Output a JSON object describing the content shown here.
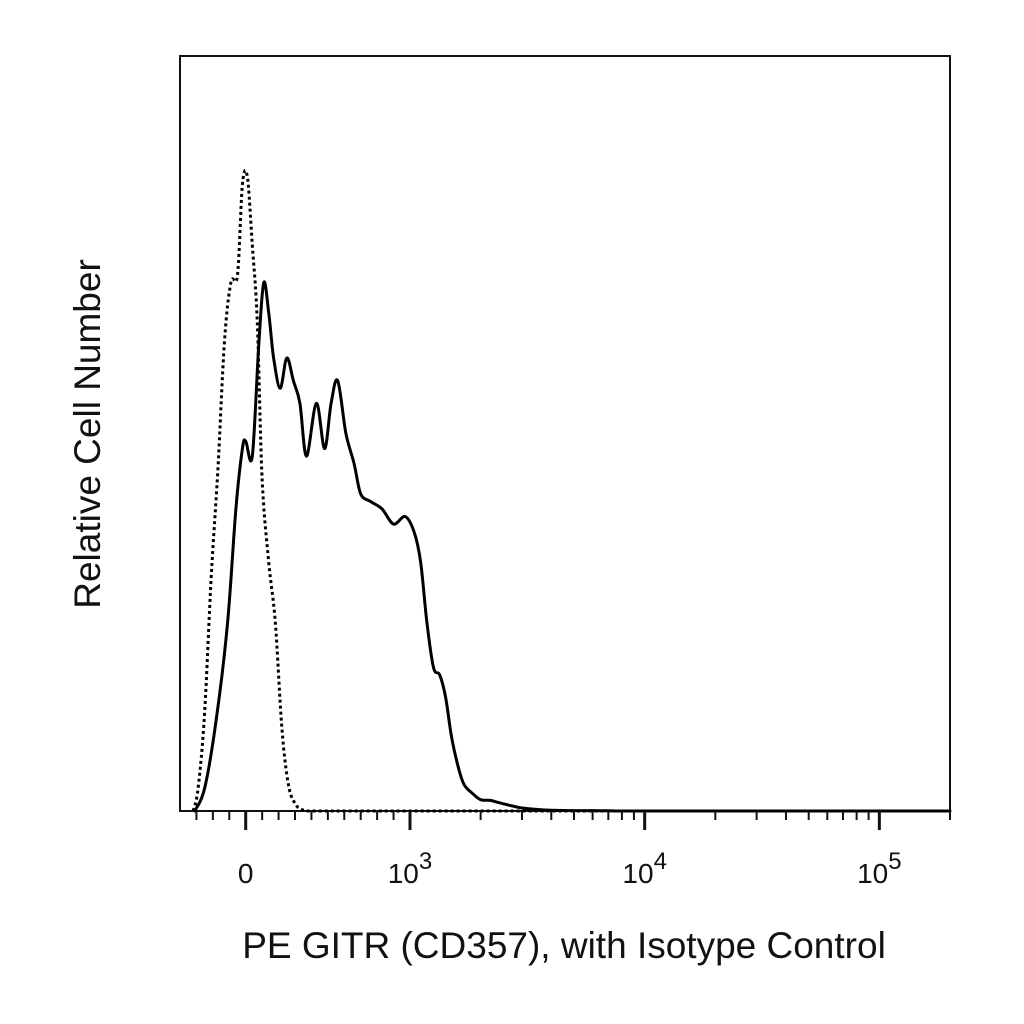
{
  "chart_data": {
    "type": "line",
    "xlabel": "PE GITR (CD357), with Isotype Control",
    "ylabel": "Relative Cell Number",
    "x_scale": "biexponential",
    "xlim": [
      -400,
      200000
    ],
    "ylim": [
      0,
      100
    ],
    "grid": false,
    "legend": "none",
    "x_ticks": [
      {
        "value": 0,
        "base": "0",
        "exp": ""
      },
      {
        "value": 1000,
        "base": "10",
        "exp": "3"
      },
      {
        "value": 10000,
        "base": "10",
        "exp": "4"
      },
      {
        "value": 100000,
        "base": "10",
        "exp": "5"
      }
    ],
    "series": [
      {
        "style": "solid",
        "color": "#000000",
        "x": [
          -310,
          -250,
          -180,
          -110,
          -60,
          -20,
          0,
          40,
          80,
          110,
          140,
          170,
          210,
          250,
          290,
          330,
          370,
          430,
          480,
          520,
          560,
          610,
          660,
          700,
          760,
          830,
          900,
          970,
          1040,
          1110,
          1180,
          1260,
          1340,
          1420,
          1500,
          1600,
          1700,
          1850,
          2000,
          2200,
          2400,
          2700,
          3000,
          3500,
          4000,
          5000,
          6000,
          7000,
          8000,
          10000,
          20000,
          50000,
          100000,
          200000
        ],
        "y": [
          0,
          3,
          12,
          25,
          40,
          48,
          49,
          47,
          62,
          70,
          66,
          60,
          56,
          60,
          57,
          54,
          47,
          54,
          48,
          54,
          57,
          50,
          46,
          42,
          41,
          40,
          38,
          39,
          37,
          33,
          25,
          19,
          18,
          15,
          10,
          6,
          3.5,
          2.3,
          1.5,
          1.4,
          1.1,
          0.7,
          0.4,
          0.2,
          0.1,
          0.05,
          0.05,
          0.02,
          0,
          0,
          0,
          0,
          0,
          0
        ]
      },
      {
        "style": "dotted",
        "color": "#000000",
        "x": [
          -320,
          -290,
          -250,
          -210,
          -170,
          -130,
          -90,
          -50,
          -20,
          10,
          40,
          70,
          100,
          140,
          180,
          220,
          260,
          300,
          340,
          380,
          430,
          500,
          560,
          650,
          800,
          1200,
          5000,
          200000
        ],
        "y": [
          0,
          3,
          13,
          31,
          45,
          62,
          70,
          71,
          83,
          84,
          75,
          65,
          44,
          33,
          25,
          11,
          3.5,
          1,
          0.2,
          0,
          0,
          0,
          0,
          0,
          0,
          0,
          0,
          0
        ]
      }
    ]
  }
}
